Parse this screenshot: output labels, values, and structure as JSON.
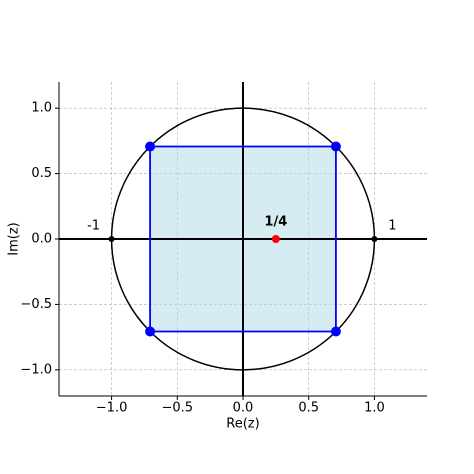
{
  "chart_data": {
    "type": "complex-plane",
    "xlabel": "Re(z)",
    "ylabel": "Im(z)",
    "xlim": [
      -1.4,
      1.4
    ],
    "ylim": [
      -1.2,
      1.2
    ],
    "xticks": [
      {
        "value": -1,
        "label": "−1.0"
      },
      {
        "value": -0.5,
        "label": "−0.5"
      },
      {
        "value": 0,
        "label": "0.0"
      },
      {
        "value": 0.5,
        "label": "0.5"
      },
      {
        "value": 1,
        "label": "1.0"
      }
    ],
    "yticks": [
      {
        "value": -1,
        "label": "−1.0"
      },
      {
        "value": -0.5,
        "label": "−0.5"
      },
      {
        "value": 0,
        "label": "0.0"
      },
      {
        "value": 0.5,
        "label": "0.5"
      },
      {
        "value": 1,
        "label": "1.0"
      }
    ],
    "grid": true,
    "circle": {
      "radius": 1,
      "color": "#000000"
    },
    "series": [
      {
        "color": "#0000ff",
        "fill": "#add8e6",
        "x": [
          0.707,
          -0.707,
          -0.707,
          0.707
        ],
        "values": [
          0.707,
          0.707,
          -0.707,
          -0.707
        ]
      },
      {
        "color": "#000000",
        "x": [
          -1,
          1
        ],
        "values": [
          0,
          0
        ],
        "labels": [
          "-1",
          "1"
        ]
      },
      {
        "color": "#ff0000",
        "x": [
          0.25
        ],
        "values": [
          0
        ],
        "labels": [
          "1/4"
        ]
      }
    ]
  }
}
